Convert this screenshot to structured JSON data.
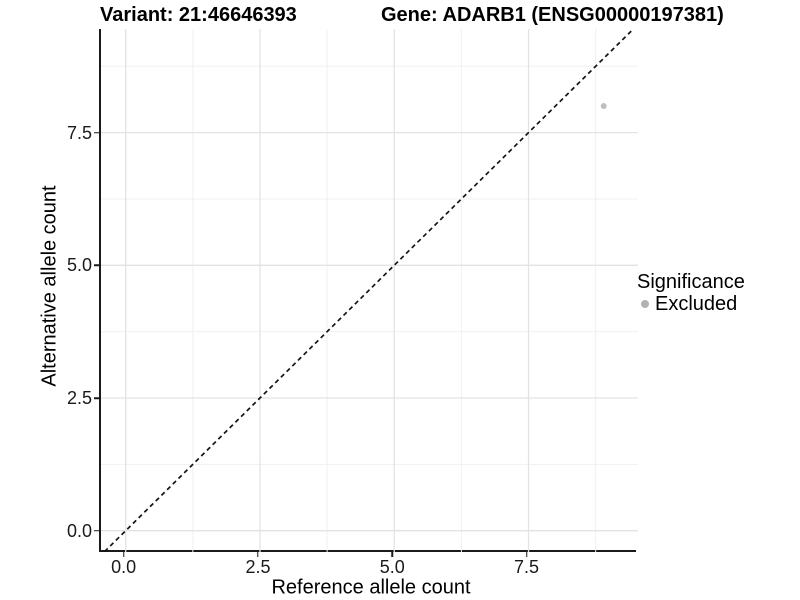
{
  "header": {
    "variant_title": "Variant: 21:46646393",
    "gene_title": "Gene: ADARB1 (ENSG00000197381)"
  },
  "legend": {
    "title": "Significance",
    "items": [
      {
        "label": "Excluded",
        "color": "#b2b2b2"
      }
    ]
  },
  "style": {
    "grid_major": "#e3e3e3",
    "grid_minor": "#f0f0f0",
    "axis_line": "#1a1a1a",
    "dashed_line": "#141414",
    "background": "#ffffff",
    "text": "#000000"
  },
  "chart_data": {
    "type": "scatter",
    "title": "Variant: 21:46646393 | Gene: ADARB1 (ENSG00000197381)",
    "xlabel": "Reference allele count",
    "ylabel": "Alternative allele count",
    "xlim": [
      -0.46,
      9.52
    ],
    "ylim": [
      -0.4,
      9.45
    ],
    "x_ticks": [
      {
        "value": 0.0,
        "label": "0.0"
      },
      {
        "value": 2.5,
        "label": "2.5"
      },
      {
        "value": 5.0,
        "label": "5.0"
      },
      {
        "value": 7.5,
        "label": "7.5"
      }
    ],
    "y_ticks": [
      {
        "value": 0.0,
        "label": "0.0"
      },
      {
        "value": 2.5,
        "label": "2.5"
      },
      {
        "value": 5.0,
        "label": "5.0"
      },
      {
        "value": 7.5,
        "label": "7.5"
      }
    ],
    "x_minor_ticks": [
      1.25,
      3.75,
      6.25,
      8.75
    ],
    "y_minor_ticks": [
      1.25,
      3.75,
      6.25,
      8.75
    ],
    "grid": "major+minor",
    "legend_position": "right",
    "series": [
      {
        "name": "Excluded",
        "color": "#bebebe",
        "point_radius": 3,
        "points": [
          {
            "x": 8.9,
            "y": 8.0
          }
        ]
      }
    ],
    "reference_line": {
      "type": "identity",
      "slope": 1,
      "intercept": 0,
      "style": "dashed",
      "color": "#141414",
      "from": -0.5,
      "to": 10
    }
  }
}
